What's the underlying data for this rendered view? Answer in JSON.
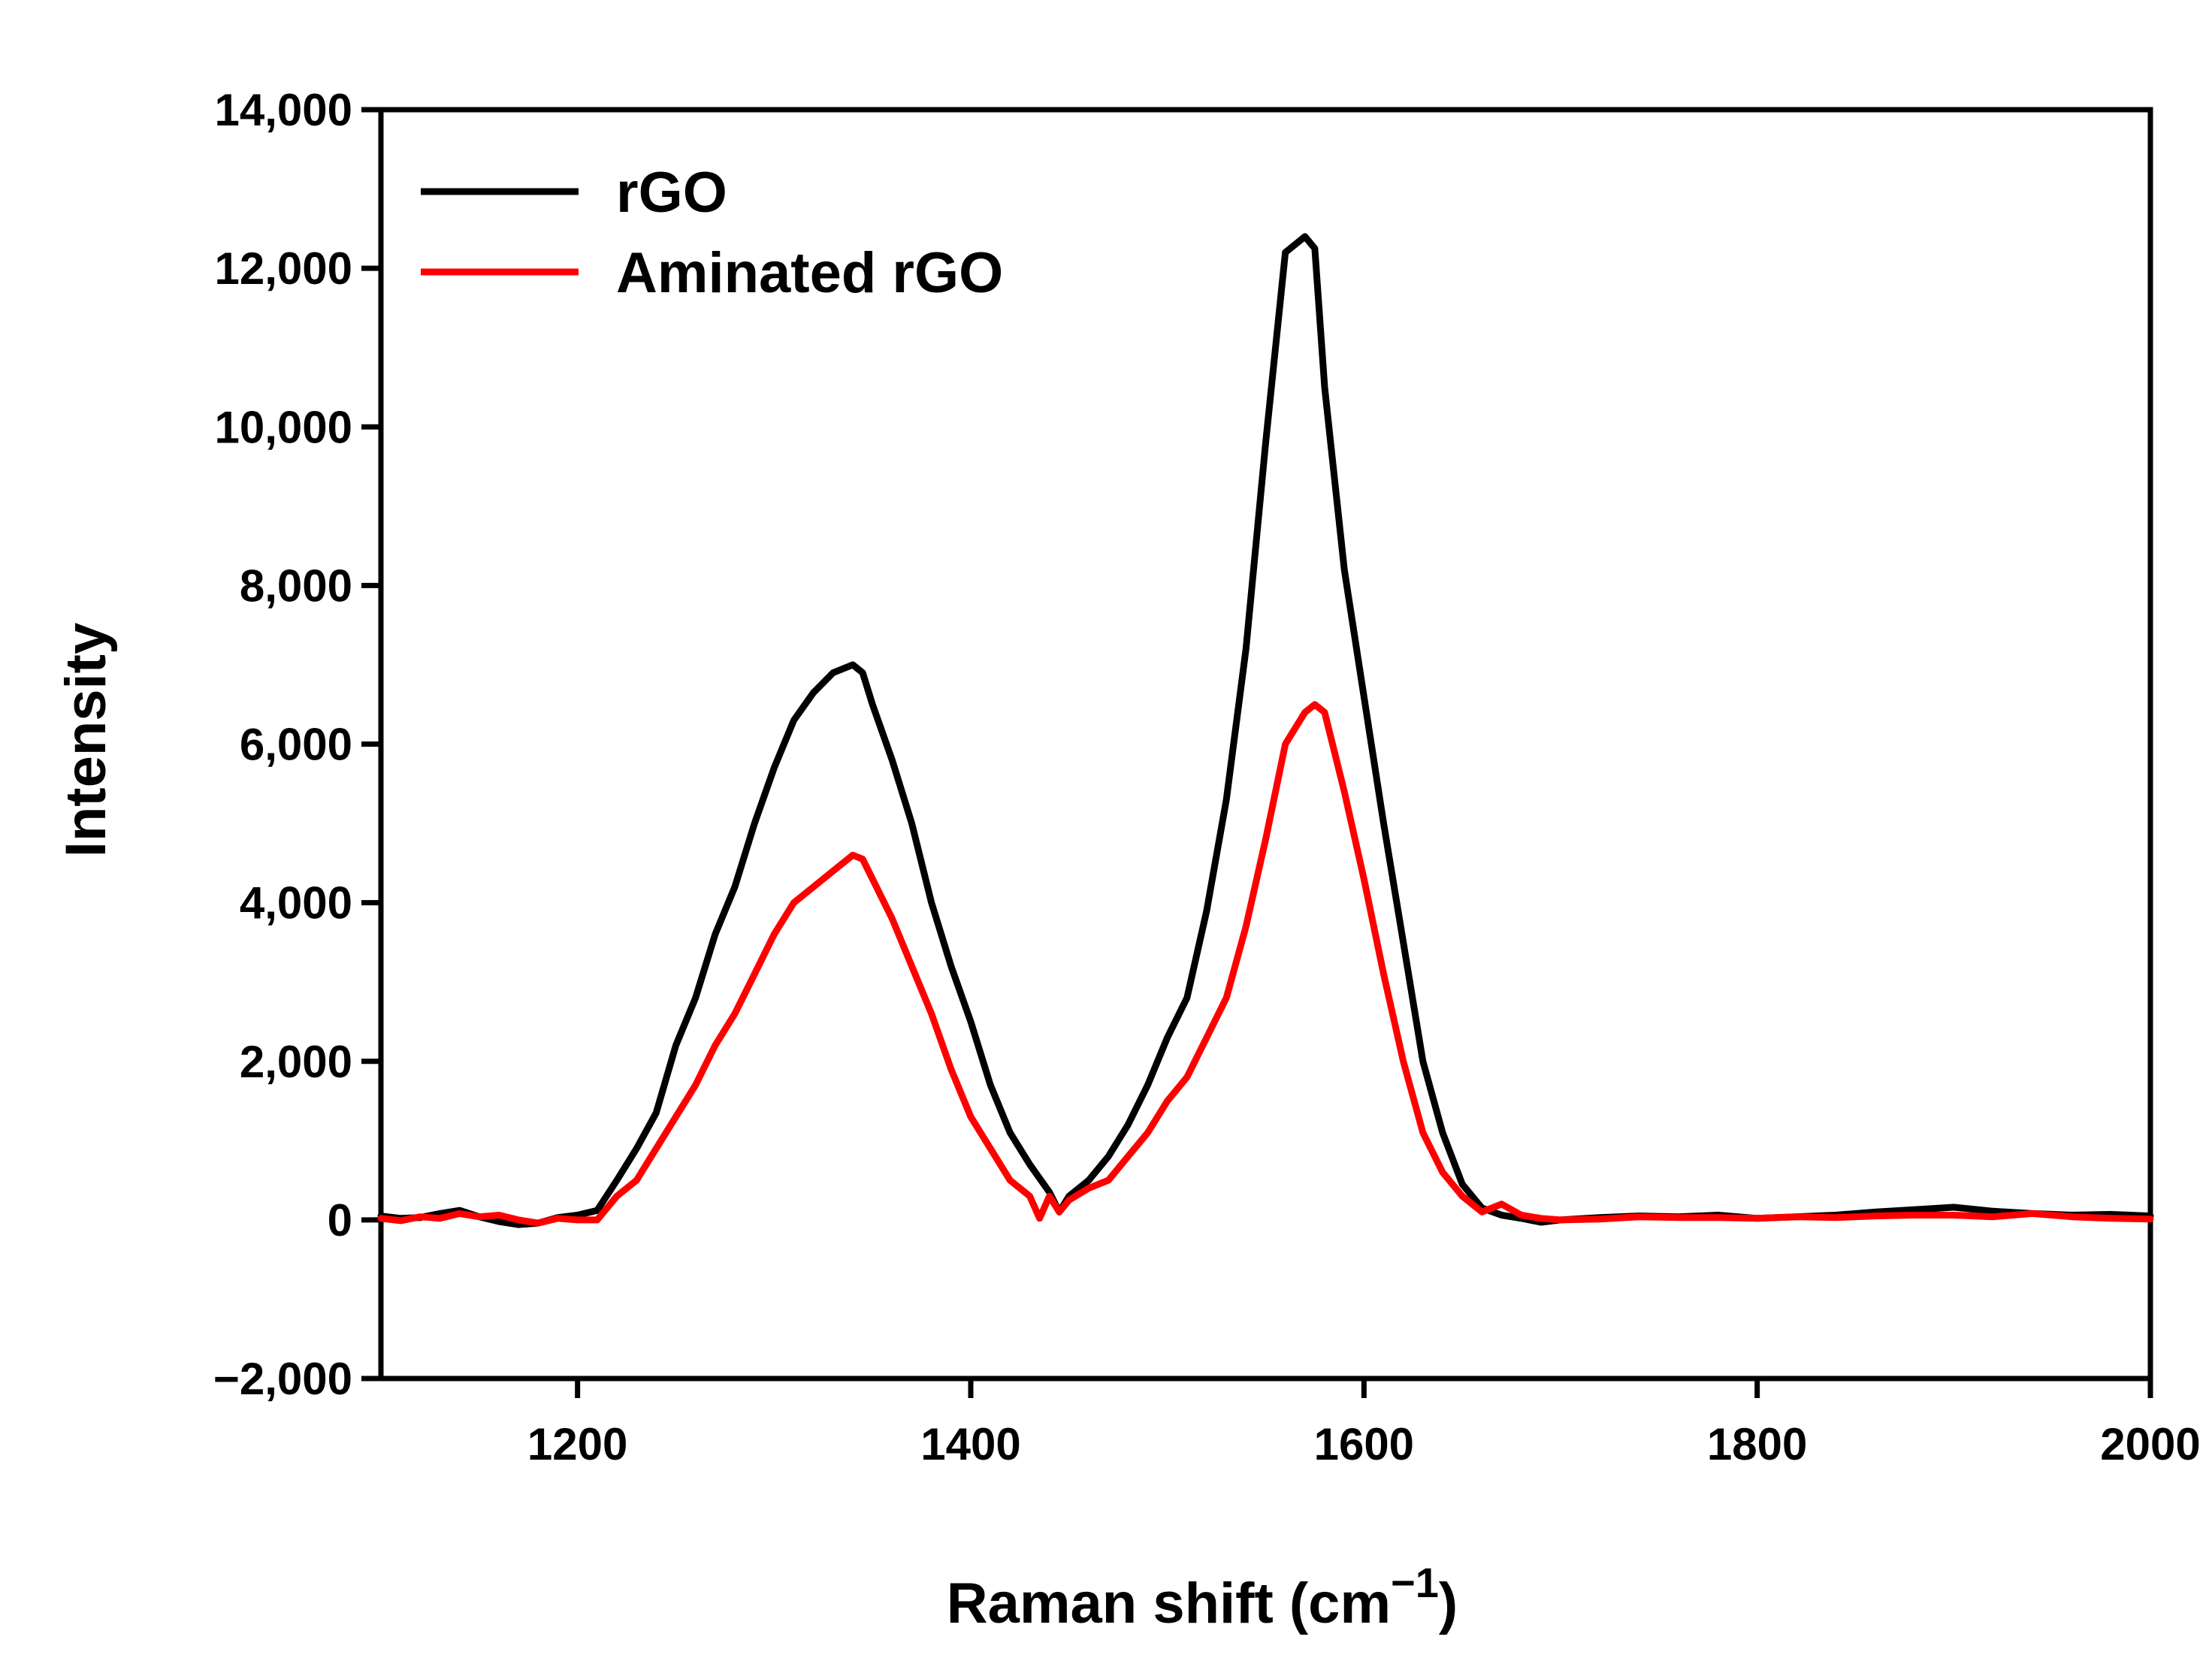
{
  "chart_data": {
    "type": "line",
    "title": "",
    "xlabel_main": "Raman shift (cm",
    "xlabel_sup": "−1",
    "xlabel_close": ")",
    "ylabel": "Intensity",
    "xlim": [
      1100,
      2000
    ],
    "ylim": [
      -2000,
      14000
    ],
    "x_ticks": [
      1200,
      1400,
      1600,
      1800,
      2000
    ],
    "y_ticks": [
      -2000,
      0,
      2000,
      4000,
      6000,
      8000,
      10000,
      12000,
      14000
    ],
    "x_tick_labels": [
      "1200",
      "1400",
      "1600",
      "1800",
      "2000"
    ],
    "y_tick_labels": [
      "−2,000",
      "0",
      "2,000",
      "4,000",
      "6,000",
      "8,000",
      "10,000",
      "12,000",
      "14,000"
    ],
    "legend_position": "top-left",
    "series": [
      {
        "name": "rGO",
        "color": "#000000",
        "x": [
          1100,
          1110,
          1120,
          1130,
          1140,
          1150,
          1160,
          1170,
          1180,
          1190,
          1200,
          1210,
          1220,
          1230,
          1240,
          1250,
          1260,
          1270,
          1280,
          1290,
          1300,
          1310,
          1320,
          1330,
          1340,
          1345,
          1350,
          1360,
          1370,
          1380,
          1390,
          1400,
          1410,
          1420,
          1430,
          1440,
          1445,
          1450,
          1460,
          1470,
          1480,
          1490,
          1500,
          1510,
          1520,
          1530,
          1540,
          1550,
          1560,
          1570,
          1575,
          1580,
          1590,
          1600,
          1610,
          1620,
          1630,
          1640,
          1650,
          1660,
          1670,
          1680,
          1690,
          1700,
          1720,
          1740,
          1760,
          1780,
          1800,
          1820,
          1840,
          1860,
          1880,
          1900,
          1920,
          1940,
          1960,
          1980,
          2000
        ],
        "values": [
          50,
          20,
          30,
          80,
          120,
          40,
          -20,
          -60,
          -40,
          30,
          60,
          120,
          500,
          900,
          1350,
          2200,
          2800,
          3600,
          4200,
          5000,
          5700,
          6300,
          6650,
          6900,
          7000,
          6900,
          6500,
          5800,
          5000,
          4000,
          3200,
          2500,
          1700,
          1100,
          700,
          350,
          100,
          300,
          500,
          800,
          1200,
          1700,
          2300,
          2800,
          3900,
          5300,
          7200,
          9800,
          12200,
          12400,
          12250,
          10500,
          8200,
          6600,
          5000,
          3500,
          2000,
          1100,
          450,
          150,
          60,
          20,
          -30,
          0,
          30,
          50,
          40,
          60,
          20,
          40,
          60,
          100,
          130,
          160,
          110,
          80,
          60,
          70,
          50
        ]
      },
      {
        "name": "Aminated rGO",
        "color": "#ff0000",
        "x": [
          1100,
          1110,
          1120,
          1130,
          1140,
          1150,
          1160,
          1170,
          1180,
          1190,
          1200,
          1210,
          1220,
          1230,
          1240,
          1250,
          1260,
          1270,
          1280,
          1290,
          1300,
          1310,
          1320,
          1330,
          1340,
          1345,
          1350,
          1360,
          1370,
          1380,
          1390,
          1400,
          1410,
          1420,
          1430,
          1435,
          1440,
          1445,
          1450,
          1460,
          1470,
          1480,
          1490,
          1500,
          1510,
          1520,
          1530,
          1540,
          1550,
          1560,
          1570,
          1575,
          1580,
          1590,
          1600,
          1610,
          1620,
          1630,
          1640,
          1650,
          1660,
          1670,
          1680,
          1690,
          1700,
          1720,
          1740,
          1760,
          1780,
          1800,
          1820,
          1840,
          1860,
          1880,
          1900,
          1920,
          1940,
          1960,
          1980,
          2000
        ],
        "values": [
          20,
          -10,
          40,
          20,
          80,
          40,
          60,
          0,
          -40,
          20,
          0,
          0,
          300,
          500,
          900,
          1300,
          1700,
          2200,
          2600,
          3100,
          3600,
          4000,
          4200,
          4400,
          4600,
          4550,
          4300,
          3800,
          3200,
          2600,
          1900,
          1300,
          900,
          500,
          300,
          20,
          300,
          100,
          250,
          400,
          500,
          800,
          1100,
          1500,
          1800,
          2300,
          2800,
          3700,
          4800,
          6000,
          6400,
          6500,
          6400,
          5400,
          4300,
          3100,
          2000,
          1100,
          600,
          300,
          100,
          200,
          60,
          20,
          0,
          10,
          40,
          30,
          30,
          20,
          40,
          30,
          50,
          60,
          60,
          40,
          80,
          40,
          20,
          10
        ]
      }
    ]
  }
}
